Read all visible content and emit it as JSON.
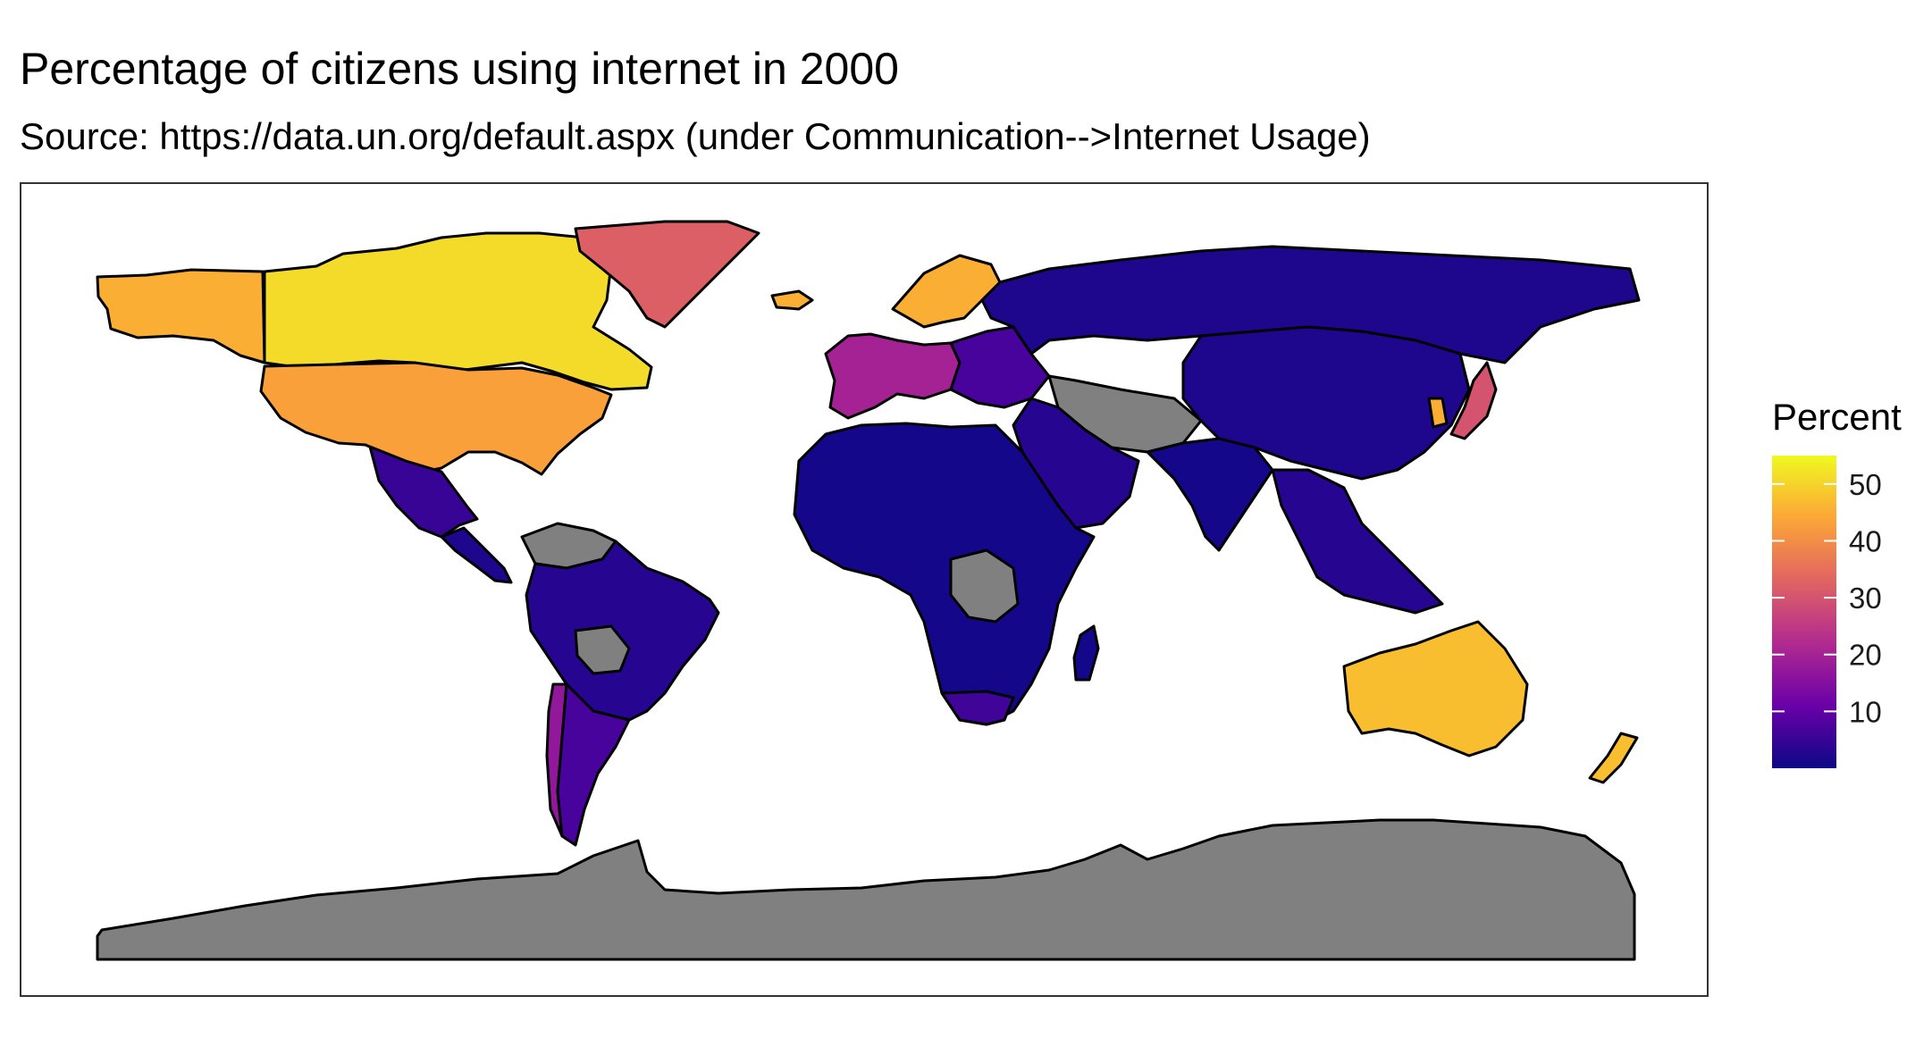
{
  "title": "Percentage of citizens using internet in 2000",
  "subtitle": "Source: https://data.un.org/default.aspx (under Communication-->Internet Usage)",
  "legend": {
    "title": "Percent",
    "min": 0,
    "max": 55,
    "ticks": [
      10,
      20,
      30,
      40,
      50
    ],
    "tick_labels": [
      "10",
      "20",
      "30",
      "40",
      "50"
    ],
    "colors": [
      "#0d0887",
      "#6a00a8",
      "#b12a90",
      "#e16462",
      "#fca636",
      "#f0f921"
    ]
  },
  "colors": {
    "missing": "#808080",
    "border": "#000000",
    "panel_border": "#333333"
  },
  "regions": [
    {
      "name": "Alaska",
      "value": 45
    },
    {
      "name": "Canada",
      "value": 51
    },
    {
      "name": "United States",
      "value": 43
    },
    {
      "name": "Mexico",
      "value": 5
    },
    {
      "name": "Central America",
      "value": 2
    },
    {
      "name": "Greenland",
      "value": 32
    },
    {
      "name": "Iceland",
      "value": 45
    },
    {
      "name": "South America",
      "value": 3
    },
    {
      "name": "Chile",
      "value": 17
    },
    {
      "name": "Argentina",
      "value": 7
    },
    {
      "name": "Venezuela region",
      "value": null
    },
    {
      "name": "Bolivia",
      "value": null
    },
    {
      "name": "Western Europe",
      "value": 20
    },
    {
      "name": "Scandinavia",
      "value": 45
    },
    {
      "name": "Eastern Europe",
      "value": 7
    },
    {
      "name": "Russia",
      "value": 2
    },
    {
      "name": "China",
      "value": 2
    },
    {
      "name": "Central Asia",
      "value": null
    },
    {
      "name": "Middle East",
      "value": 3
    },
    {
      "name": "India",
      "value": 1
    },
    {
      "name": "Southeast Asia",
      "value": 3
    },
    {
      "name": "Japan",
      "value": 30
    },
    {
      "name": "South Korea",
      "value": 45
    },
    {
      "name": "Africa",
      "value": 1
    },
    {
      "name": "Central Africa",
      "value": null
    },
    {
      "name": "South Africa",
      "value": 6
    },
    {
      "name": "Madagascar",
      "value": 1
    },
    {
      "name": "Australia",
      "value": 47
    },
    {
      "name": "New Zealand",
      "value": 47
    },
    {
      "name": "Antarctica",
      "value": null
    }
  ]
}
